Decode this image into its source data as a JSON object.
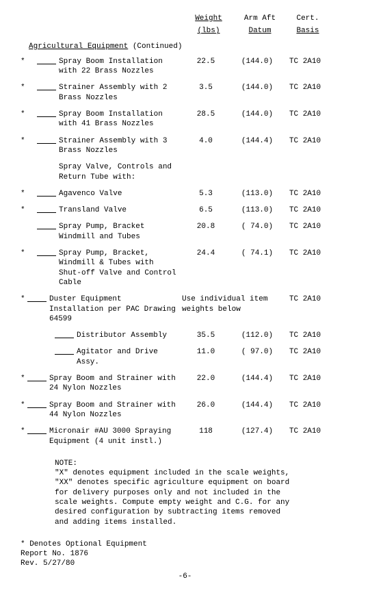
{
  "headers": {
    "weight1": "Weight",
    "weight2": "(lbs)",
    "arm1": "Arm Aft",
    "arm2": "Datum",
    "cert1": "Cert.",
    "cert2": "Basis"
  },
  "section_title_main": "Agricultural Equipment",
  "section_title_suffix": " (Continued)",
  "items": [
    {
      "star": "*",
      "indent": true,
      "blank": true,
      "desc": "Spray Boom Installation with 22 Brass Nozzles",
      "weight": "22.5",
      "arm": "(144.0)",
      "cert": "TC 2A10"
    },
    {
      "star": "*",
      "indent": true,
      "blank": true,
      "desc": "Strainer Assembly with 2 Brass Nozzles",
      "weight": "3.5",
      "arm": "(144.0)",
      "cert": "TC 2A10"
    },
    {
      "star": "*",
      "indent": true,
      "blank": true,
      "desc": "Spray Boom Installation with 41 Brass Nozzles",
      "weight": "28.5",
      "arm": "(144.0)",
      "cert": "TC 2A10"
    },
    {
      "star": "*",
      "indent": true,
      "blank": true,
      "desc": "Strainer Assembly with 3 Brass Nozzles",
      "weight": "4.0",
      "arm": "(144.4)",
      "cert": "TC 2A10"
    },
    {
      "star": "",
      "indent": true,
      "blank": false,
      "desc": "Spray Valve, Controls and Return Tube with:",
      "weight": "",
      "arm": "",
      "cert": ""
    },
    {
      "star": "*",
      "indent": true,
      "blank": true,
      "desc": "Agavenco Valve",
      "weight": "5.3",
      "arm": "(113.0)",
      "cert": "TC 2A10"
    },
    {
      "star": "*",
      "indent": true,
      "blank": true,
      "desc": "Transland Valve",
      "weight": "6.5",
      "arm": "(113.0)",
      "cert": "TC 2A10"
    },
    {
      "star": "",
      "indent": true,
      "blank": true,
      "desc": "Spray Pump, Bracket Windmill and Tubes",
      "weight": "20.8",
      "arm": "( 74.0)",
      "cert": "TC 2A10"
    },
    {
      "star": "*",
      "indent": true,
      "blank": true,
      "desc": "Spray Pump, Bracket, Windmill & Tubes with Shut-off Valve and Control Cable",
      "weight": "24.4",
      "arm": "( 74.1)",
      "cert": "TC 2A10"
    }
  ],
  "duster": {
    "star": "*",
    "desc": "Duster Equipment Installation per PAC Drawing 64599",
    "weight_text": "Use individual item weights below",
    "cert": "TC 2A10"
  },
  "sub_items": [
    {
      "star": "",
      "blank": true,
      "desc": "Distributor Assembly",
      "weight": "35.5",
      "arm": "(112.0)",
      "cert": "TC 2A10"
    },
    {
      "star": "",
      "blank": true,
      "desc": "Agitator and Drive Assy.",
      "weight": "11.0",
      "arm": "( 97.0)",
      "cert": "TC 2A10"
    }
  ],
  "wide_items": [
    {
      "star": "*",
      "blank": true,
      "desc": "Spray Boom and Strainer with 24 Nylon Nozzles",
      "weight": "22.0",
      "arm": "(144.4)",
      "cert": "TC 2A10"
    },
    {
      "star": "*",
      "blank": true,
      "desc": "Spray Boom and Strainer with 44 Nylon Nozzles",
      "weight": "26.0",
      "arm": "(144.4)",
      "cert": "TC 2A10"
    },
    {
      "star": "*",
      "blank": true,
      "desc": "Micronair #AU 3000 Spraying Equipment (4 unit instl.)",
      "weight": "118",
      "arm": "(127.4)",
      "cert": "TC 2A10"
    }
  ],
  "note_label": "NOTE:",
  "note_text": "\"X\" denotes equipment included in the scale weights, \"XX\" denotes specific agriculture equipment on board for delivery purposes only and not included in the scale weights.  Compute empty weight and C.G. for any desired configuration by subtracting items removed and adding items installed.",
  "footer_star": "* Denotes Optional Equipment",
  "footer_report": "Report No. 1876",
  "footer_rev": "Rev.  5/27/80",
  "page_num": "-6-"
}
